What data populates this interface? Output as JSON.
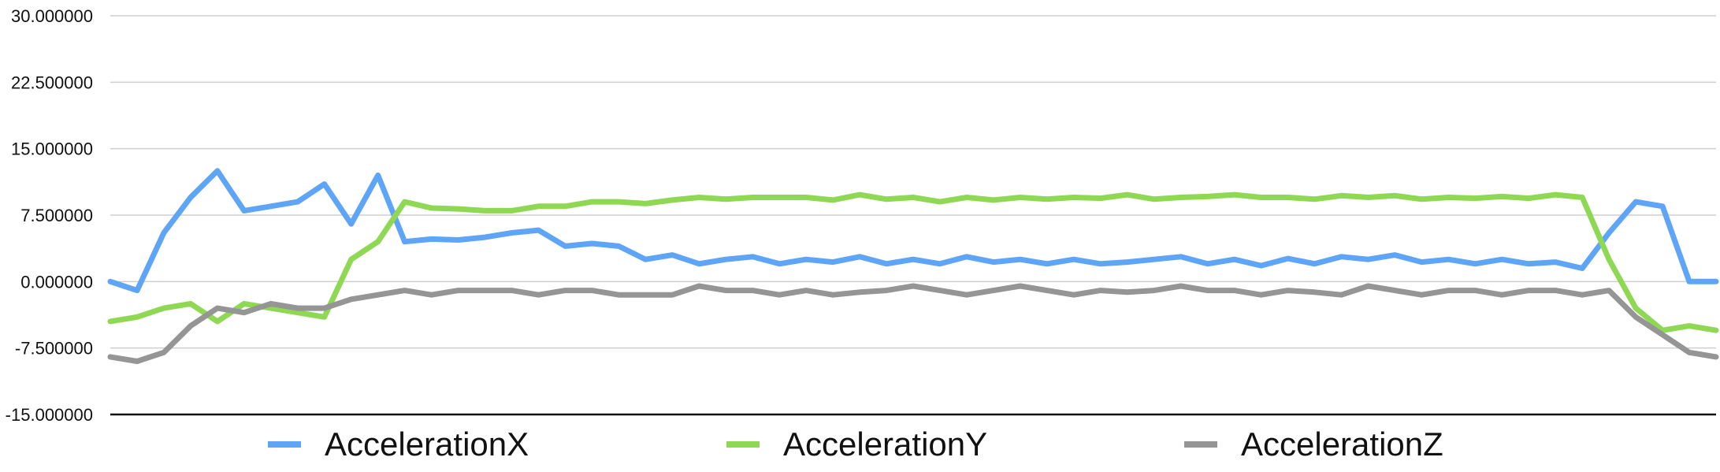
{
  "chart_data": {
    "type": "line",
    "title": "",
    "xlabel": "",
    "ylabel": "",
    "ylim": [
      -15,
      30
    ],
    "yticks": [
      30,
      22.5,
      15,
      7.5,
      0,
      -7.5,
      -15
    ],
    "ytick_labels": [
      "30.000000",
      "22.500000",
      "15.000000",
      "7.500000",
      "0.000000",
      "-7.500000",
      "-15.000000"
    ],
    "grid": true,
    "legend": "bottom",
    "colors": {
      "AccelerationX": "#5ea5f7",
      "AccelerationY": "#8fd854",
      "AccelerationZ": "#959595"
    },
    "x": [
      0,
      10,
      20,
      30,
      40,
      50,
      60,
      70,
      80,
      90,
      100,
      110,
      120,
      130,
      140,
      150,
      160,
      170,
      180,
      190,
      200,
      210,
      220,
      230,
      240,
      250,
      260,
      270,
      280,
      290,
      300,
      310,
      320,
      330,
      340,
      350,
      360,
      370,
      380,
      390,
      400,
      410,
      420,
      430,
      440,
      450,
      460,
      470,
      480,
      490,
      500,
      510,
      520,
      530,
      540,
      550,
      560,
      570,
      580,
      590,
      600
    ],
    "series": [
      {
        "name": "AccelerationX",
        "values": [
          0.0,
          -1.0,
          5.5,
          9.5,
          12.5,
          8.0,
          8.5,
          9.0,
          11.0,
          6.5,
          12.0,
          4.5,
          4.8,
          4.7,
          5.0,
          5.5,
          5.8,
          4.0,
          4.3,
          4.0,
          2.5,
          3.0,
          2.0,
          2.5,
          2.8,
          2.0,
          2.5,
          2.2,
          2.8,
          2.0,
          2.5,
          2.0,
          2.8,
          2.2,
          2.5,
          2.0,
          2.5,
          2.0,
          2.2,
          2.5,
          2.8,
          2.0,
          2.5,
          1.8,
          2.6,
          2.0,
          2.8,
          2.5,
          3.0,
          2.2,
          2.5,
          2.0,
          2.5,
          2.0,
          2.2,
          1.5,
          5.5,
          9.0,
          8.5,
          0.0,
          0.0
        ]
      },
      {
        "name": "AccelerationY",
        "values": [
          -4.5,
          -4.0,
          -3.0,
          -2.5,
          -4.5,
          -2.5,
          -3.0,
          -3.5,
          -4.0,
          2.5,
          4.5,
          9.0,
          8.3,
          8.2,
          8.0,
          8.0,
          8.5,
          8.5,
          9.0,
          9.0,
          8.8,
          9.2,
          9.5,
          9.3,
          9.5,
          9.5,
          9.5,
          9.2,
          9.8,
          9.3,
          9.5,
          9.0,
          9.5,
          9.2,
          9.5,
          9.3,
          9.5,
          9.4,
          9.8,
          9.3,
          9.5,
          9.6,
          9.8,
          9.5,
          9.5,
          9.3,
          9.7,
          9.5,
          9.7,
          9.3,
          9.5,
          9.4,
          9.6,
          9.4,
          9.8,
          9.5,
          2.5,
          -3.0,
          -5.5,
          -5.0,
          -5.5
        ]
      },
      {
        "name": "AccelerationZ",
        "values": [
          -8.5,
          -9.0,
          -8.0,
          -5.0,
          -3.0,
          -3.5,
          -2.5,
          -3.0,
          -3.0,
          -2.0,
          -1.5,
          -1.0,
          -1.5,
          -1.0,
          -1.0,
          -1.0,
          -1.5,
          -1.0,
          -1.0,
          -1.5,
          -1.5,
          -1.5,
          -0.5,
          -1.0,
          -1.0,
          -1.5,
          -1.0,
          -1.5,
          -1.2,
          -1.0,
          -0.5,
          -1.0,
          -1.5,
          -1.0,
          -0.5,
          -1.0,
          -1.5,
          -1.0,
          -1.2,
          -1.0,
          -0.5,
          -1.0,
          -1.0,
          -1.5,
          -1.0,
          -1.2,
          -1.5,
          -0.5,
          -1.0,
          -1.5,
          -1.0,
          -1.0,
          -1.5,
          -1.0,
          -1.0,
          -1.5,
          -1.0,
          -4.0,
          -6.0,
          -8.0,
          -8.5
        ]
      }
    ]
  }
}
